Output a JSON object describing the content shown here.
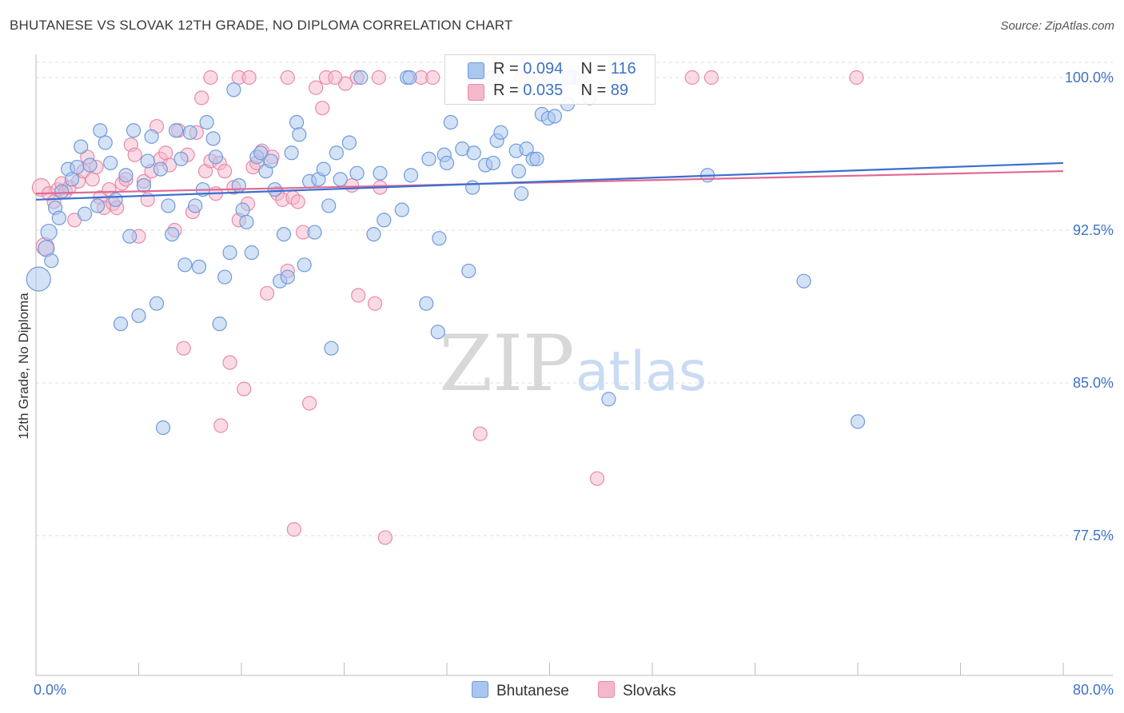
{
  "title": "BHUTANESE VS SLOVAK 12TH GRADE, NO DIPLOMA CORRELATION CHART",
  "source": "Source: ZipAtlas.com",
  "watermark": {
    "zip": "ZIP",
    "atlas": "atlas"
  },
  "legend": {
    "bhutanese": {
      "r_label": "R = ",
      "r_value": "0.094",
      "n_label": "N = ",
      "n_value": "116"
    },
    "slovaks": {
      "r_label": "R = ",
      "r_value": "0.035",
      "n_label": "N = ",
      "n_value": "89"
    }
  },
  "colors": {
    "bhutanese_fill": "#a9c6ee",
    "bhutanese_stroke": "#6f9bdc",
    "bhutanese_line": "#3a6fcf",
    "slovaks_fill": "#f5b8cb",
    "slovaks_stroke": "#e88aa8",
    "slovaks_line": "#e06a93",
    "axis_label": "#3d72c8",
    "grid": "#dddddd"
  },
  "chart_data": {
    "type": "scatter",
    "title": "BHUTANESE VS SLOVAK 12TH GRADE, NO DIPLOMA CORRELATION CHART",
    "xlabel": "",
    "ylabel": "12th Grade, No Diploma",
    "xlim": [
      0,
      80
    ],
    "ylim": [
      70.0,
      101.0
    ],
    "x_tick_labels": [
      "0.0%",
      "80.0%"
    ],
    "y_ticks": [
      77.5,
      85.0,
      92.5,
      100.0
    ],
    "y_tick_labels": [
      "77.5%",
      "85.0%",
      "92.5%",
      "100.0%"
    ],
    "grid": true,
    "legend_position": "top-center",
    "series": [
      {
        "name": "Bhutanese",
        "trend": {
          "x": [
            0,
            80
          ],
          "y": [
            94.0,
            95.8
          ]
        },
        "points": [
          [
            0.2,
            90.1
          ],
          [
            0.8,
            91.6
          ],
          [
            1.0,
            92.4
          ],
          [
            1.2,
            91.0
          ],
          [
            1.5,
            93.6
          ],
          [
            1.8,
            93.1
          ],
          [
            2.0,
            94.4
          ],
          [
            2.5,
            95.5
          ],
          [
            2.8,
            95.0
          ],
          [
            3.2,
            95.6
          ],
          [
            3.5,
            96.6
          ],
          [
            3.8,
            93.3
          ],
          [
            4.2,
            95.7
          ],
          [
            4.8,
            93.7
          ],
          [
            5.0,
            97.4
          ],
          [
            5.4,
            96.8
          ],
          [
            5.8,
            95.8
          ],
          [
            6.2,
            94.0
          ],
          [
            6.6,
            87.9
          ],
          [
            7.0,
            95.2
          ],
          [
            7.3,
            92.2
          ],
          [
            7.6,
            97.4
          ],
          [
            8.0,
            88.3
          ],
          [
            8.4,
            94.7
          ],
          [
            8.7,
            95.9
          ],
          [
            9.0,
            97.1
          ],
          [
            9.4,
            88.9
          ],
          [
            9.7,
            95.5
          ],
          [
            9.9,
            82.8
          ],
          [
            10.3,
            93.7
          ],
          [
            10.6,
            92.3
          ],
          [
            10.9,
            97.4
          ],
          [
            11.3,
            96.0
          ],
          [
            11.6,
            90.8
          ],
          [
            12.0,
            97.3
          ],
          [
            12.4,
            93.7
          ],
          [
            12.7,
            90.7
          ],
          [
            13.0,
            94.5
          ],
          [
            13.3,
            97.8
          ],
          [
            13.8,
            97.0
          ],
          [
            14.0,
            96.1
          ],
          [
            14.3,
            87.9
          ],
          [
            14.7,
            90.2
          ],
          [
            15.1,
            91.4
          ],
          [
            15.4,
            99.4
          ],
          [
            15.8,
            94.7
          ],
          [
            16.1,
            93.5
          ],
          [
            16.4,
            92.9
          ],
          [
            16.8,
            91.4
          ],
          [
            17.2,
            96.1
          ],
          [
            17.5,
            96.3
          ],
          [
            17.9,
            95.4
          ],
          [
            18.3,
            95.9
          ],
          [
            18.6,
            94.5
          ],
          [
            19.0,
            90.0
          ],
          [
            19.3,
            92.3
          ],
          [
            19.6,
            90.2
          ],
          [
            19.9,
            96.3
          ],
          [
            20.3,
            97.8
          ],
          [
            20.5,
            97.2
          ],
          [
            20.9,
            90.8
          ],
          [
            21.3,
            94.9
          ],
          [
            21.7,
            92.4
          ],
          [
            22.0,
            95.0
          ],
          [
            22.4,
            95.5
          ],
          [
            22.8,
            93.7
          ],
          [
            23.0,
            86.7
          ],
          [
            23.4,
            96.3
          ],
          [
            23.7,
            95.0
          ],
          [
            24.4,
            96.8
          ],
          [
            25.0,
            95.3
          ],
          [
            26.3,
            92.3
          ],
          [
            27.1,
            93.0
          ],
          [
            26.8,
            95.3
          ],
          [
            28.5,
            93.5
          ],
          [
            29.2,
            95.2
          ],
          [
            30.4,
            88.9
          ],
          [
            30.6,
            96.0
          ],
          [
            31.3,
            87.5
          ],
          [
            31.4,
            92.1
          ],
          [
            31.8,
            96.2
          ],
          [
            32.0,
            95.8
          ],
          [
            32.3,
            97.8
          ],
          [
            33.2,
            96.5
          ],
          [
            33.7,
            90.5
          ],
          [
            34.0,
            94.6
          ],
          [
            34.1,
            96.3
          ],
          [
            35.0,
            95.7
          ],
          [
            35.6,
            95.8
          ],
          [
            35.9,
            96.9
          ],
          [
            36.2,
            97.3
          ],
          [
            37.4,
            96.4
          ],
          [
            37.6,
            95.4
          ],
          [
            37.8,
            94.3
          ],
          [
            38.2,
            96.5
          ],
          [
            38.7,
            96.0
          ],
          [
            39.0,
            96.0
          ],
          [
            39.4,
            98.2
          ],
          [
            39.9,
            98.0
          ],
          [
            40.4,
            98.1
          ],
          [
            41.4,
            98.7
          ],
          [
            41.8,
            100.0
          ],
          [
            42.4,
            99.9
          ],
          [
            43.1,
            99.0
          ],
          [
            44.6,
            84.2
          ],
          [
            52.3,
            95.2
          ],
          [
            59.8,
            90.0
          ],
          [
            64.0,
            83.1
          ],
          [
            25.3,
            100.0
          ],
          [
            28.9,
            100.0
          ],
          [
            35.5,
            100.0
          ],
          [
            40.0,
            100.0
          ],
          [
            41.5,
            100.0
          ],
          [
            29.1,
            100.0
          ]
        ]
      },
      {
        "name": "Slovaks",
        "trend": {
          "x": [
            0,
            80
          ],
          "y": [
            94.3,
            95.4
          ]
        },
        "points": [
          [
            0.4,
            94.6
          ],
          [
            0.7,
            91.7
          ],
          [
            1.0,
            94.3
          ],
          [
            1.4,
            93.9
          ],
          [
            1.7,
            94.5
          ],
          [
            2.0,
            94.8
          ],
          [
            2.3,
            94.4
          ],
          [
            2.6,
            94.6
          ],
          [
            3.0,
            93.0
          ],
          [
            3.3,
            94.9
          ],
          [
            3.7,
            95.4
          ],
          [
            4.0,
            96.1
          ],
          [
            4.4,
            95.0
          ],
          [
            4.7,
            95.6
          ],
          [
            5.0,
            94.1
          ],
          [
            5.3,
            93.6
          ],
          [
            5.7,
            94.5
          ],
          [
            6.0,
            93.8
          ],
          [
            6.3,
            93.6
          ],
          [
            6.7,
            94.8
          ],
          [
            7.0,
            95.0
          ],
          [
            7.4,
            96.7
          ],
          [
            7.7,
            96.2
          ],
          [
            8.0,
            92.2
          ],
          [
            8.4,
            94.9
          ],
          [
            8.7,
            94.0
          ],
          [
            9.0,
            95.4
          ],
          [
            9.4,
            97.6
          ],
          [
            9.7,
            96.0
          ],
          [
            10.1,
            96.3
          ],
          [
            10.4,
            95.7
          ],
          [
            10.8,
            92.5
          ],
          [
            11.1,
            97.4
          ],
          [
            11.5,
            86.7
          ],
          [
            11.8,
            96.2
          ],
          [
            12.2,
            93.4
          ],
          [
            12.5,
            97.3
          ],
          [
            12.9,
            99.0
          ],
          [
            13.2,
            95.4
          ],
          [
            13.6,
            95.9
          ],
          [
            14.0,
            94.3
          ],
          [
            14.3,
            95.8
          ],
          [
            14.7,
            95.4
          ],
          [
            15.1,
            86.0
          ],
          [
            15.4,
            94.6
          ],
          [
            15.8,
            93.0
          ],
          [
            16.2,
            84.7
          ],
          [
            16.5,
            93.8
          ],
          [
            16.9,
            95.6
          ],
          [
            17.2,
            95.8
          ],
          [
            17.6,
            96.4
          ],
          [
            18.0,
            89.4
          ],
          [
            18.4,
            96.1
          ],
          [
            18.8,
            94.3
          ],
          [
            19.2,
            94.0
          ],
          [
            19.6,
            90.5
          ],
          [
            20.0,
            94.1
          ],
          [
            20.4,
            93.9
          ],
          [
            20.8,
            92.4
          ],
          [
            21.3,
            84.0
          ],
          [
            21.8,
            99.5
          ],
          [
            22.3,
            98.5
          ],
          [
            24.1,
            99.7
          ],
          [
            24.6,
            94.7
          ],
          [
            25.1,
            89.3
          ],
          [
            26.4,
            88.9
          ],
          [
            26.8,
            94.6
          ],
          [
            27.2,
            77.4
          ],
          [
            30.0,
            100.0
          ],
          [
            34.6,
            82.5
          ],
          [
            38.3,
            100.0
          ],
          [
            39.2,
            100.0
          ],
          [
            43.7,
            80.3
          ],
          [
            51.1,
            100.0
          ],
          [
            52.6,
            100.0
          ],
          [
            63.9,
            100.0
          ],
          [
            13.6,
            100.0
          ],
          [
            15.8,
            100.0
          ],
          [
            19.6,
            100.0
          ],
          [
            22.6,
            100.0
          ],
          [
            25.0,
            100.0
          ],
          [
            26.7,
            100.0
          ],
          [
            30.9,
            100.0
          ],
          [
            37.8,
            100.0
          ],
          [
            35.5,
            100.0
          ],
          [
            20.1,
            77.8
          ],
          [
            14.4,
            82.9
          ],
          [
            16.6,
            100.0
          ],
          [
            23.3,
            100.0
          ]
        ]
      }
    ]
  },
  "bottom_legend": {
    "bhutanese": "Bhutanese",
    "slovaks": "Slovaks"
  },
  "y_axis_label": "12th Grade, No Diploma",
  "x_axis": {
    "min_label": "0.0%",
    "max_label": "80.0%"
  }
}
